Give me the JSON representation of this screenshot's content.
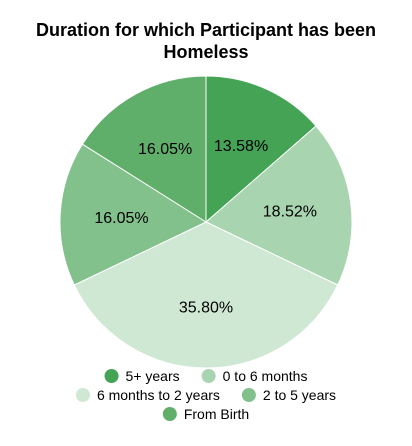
{
  "chart_data": {
    "type": "pie",
    "title_lines": [
      "Duration for which Participant has been",
      "Homeless"
    ],
    "slices": [
      {
        "label": "5+ years",
        "value": 13.58,
        "display": "13.58%",
        "color": "#44a355"
      },
      {
        "label": "0 to 6 months",
        "value": 18.52,
        "display": "18.52%",
        "color": "#a8d5b0"
      },
      {
        "label": "6 months to 2 years",
        "value": 35.8,
        "display": "35.80%",
        "color": "#cfe8d3"
      },
      {
        "label": "2 to 5 years",
        "value": 16.05,
        "display": "16.05%",
        "color": "#82c08c"
      },
      {
        "label": "From Birth",
        "value": 16.05,
        "display": "16.05%",
        "color": "#5faf6b"
      }
    ],
    "start_angle_deg": 0,
    "direction": "clockwise",
    "legend_position": "bottom"
  }
}
